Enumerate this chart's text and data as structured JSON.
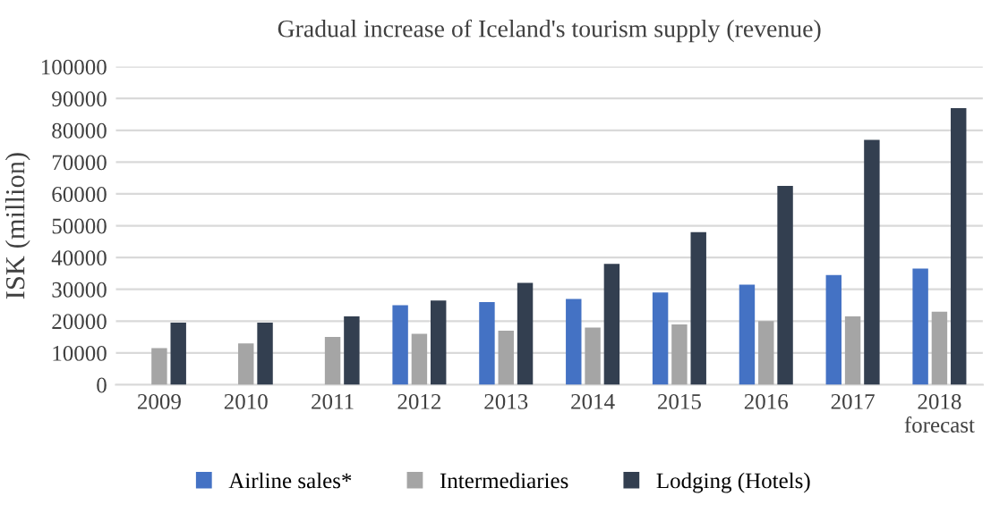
{
  "chart_data": {
    "type": "bar",
    "title": "Gradual increase of Iceland's tourism supply (revenue)",
    "ylabel": "ISK (million)",
    "categories": [
      "2009",
      "2010",
      "2011",
      "2012",
      "2013",
      "2014",
      "2015",
      "2016",
      "2017",
      "2018\nforecast"
    ],
    "series": [
      {
        "name": "Airline sales*",
        "color": "#4472c4",
        "values": [
          null,
          null,
          null,
          25000,
          26000,
          27000,
          29000,
          31500,
          34500,
          36500
        ]
      },
      {
        "name": "Intermediaries",
        "color": "#a5a5a5",
        "values": [
          11500,
          13000,
          15000,
          16000,
          17000,
          18000,
          19000,
          20000,
          21500,
          23000
        ]
      },
      {
        "name": "Lodging (Hotels)",
        "color": "#333f50",
        "values": [
          19500,
          19500,
          21500,
          26500,
          32000,
          38000,
          48000,
          62500,
          77000,
          87000
        ]
      }
    ],
    "ylim": [
      0,
      100000
    ],
    "yticks": [
      0,
      10000,
      20000,
      30000,
      40000,
      50000,
      60000,
      70000,
      80000,
      90000,
      100000
    ],
    "grid": "y",
    "legend": "bottom"
  }
}
